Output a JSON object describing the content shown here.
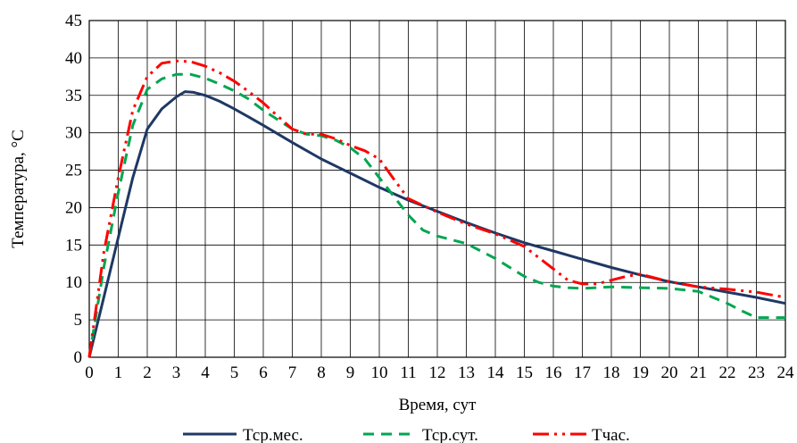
{
  "chart_data": {
    "type": "line",
    "xlabel": "Время, сут",
    "ylabel": "Температура, °С",
    "xlim": [
      0,
      24
    ],
    "ylim": [
      0,
      45
    ],
    "x_ticks": [
      0,
      1,
      2,
      3,
      4,
      5,
      6,
      7,
      8,
      9,
      10,
      11,
      12,
      13,
      14,
      15,
      16,
      17,
      18,
      19,
      20,
      21,
      22,
      23,
      24
    ],
    "y_ticks": [
      0,
      5,
      10,
      15,
      20,
      25,
      30,
      35,
      40,
      45
    ],
    "grid": true,
    "legend_position": "bottom",
    "series": [
      {
        "name": "Тср.мес.",
        "color": "#1f3864",
        "style": "solid",
        "x": [
          0,
          0.5,
          1,
          1.5,
          2,
          2.5,
          3,
          3.3,
          3.6,
          4,
          4.5,
          5,
          5.5,
          6,
          7,
          8,
          9,
          10,
          11,
          12,
          13,
          14,
          15,
          16,
          17,
          18,
          19,
          20,
          21,
          22,
          23,
          24
        ],
        "y": [
          0,
          8,
          16,
          24,
          30.5,
          33.2,
          34.8,
          35.5,
          35.4,
          35,
          34.2,
          33.2,
          32.1,
          31,
          28.7,
          26.5,
          24.6,
          22.7,
          21,
          19.5,
          18,
          16.6,
          15.3,
          14.2,
          13.1,
          12,
          11,
          10.1,
          9.4,
          8.7,
          8,
          7.2
        ]
      },
      {
        "name": "Тср.сут.",
        "color": "#00a651",
        "style": "dashed",
        "x": [
          0,
          0.5,
          1,
          1.5,
          2,
          2.5,
          3,
          3.5,
          4,
          4.5,
          5,
          5.5,
          6,
          7,
          7.5,
          8,
          8.5,
          9,
          9.5,
          10,
          10.5,
          11,
          11.5,
          12,
          13,
          14,
          15,
          15.5,
          16,
          16.5,
          17,
          18,
          19,
          20,
          21,
          22,
          22.5,
          23,
          24
        ],
        "y": [
          0,
          12,
          22,
          31,
          35.8,
          37.2,
          37.8,
          37.8,
          37.3,
          36.5,
          35.6,
          34.5,
          33,
          30.5,
          29.8,
          29.6,
          29,
          28,
          26.5,
          24,
          21.5,
          19,
          17,
          16.2,
          15.2,
          13.2,
          10.8,
          10,
          9.5,
          9.3,
          9.2,
          9.4,
          9.3,
          9.2,
          8.8,
          7.2,
          6.2,
          5.3,
          5.3
        ]
      },
      {
        "name": "Тчас.",
        "color": "#ff0000",
        "style": "dashdot",
        "x": [
          0,
          0.5,
          1,
          1.5,
          2,
          2.5,
          3,
          3.5,
          4,
          4.5,
          5,
          5.5,
          6,
          6.5,
          7,
          7.5,
          8,
          8.5,
          9,
          9.5,
          10,
          10.5,
          11,
          12,
          13,
          14,
          15,
          16,
          16.5,
          17,
          17.5,
          18,
          18.5,
          19,
          20,
          21,
          22,
          23,
          24
        ],
        "y": [
          0,
          14,
          24,
          33,
          37.5,
          39.3,
          39.6,
          39.5,
          38.9,
          38,
          36.9,
          35.5,
          34,
          32.2,
          30.5,
          29.8,
          29.8,
          29.2,
          28.3,
          27.6,
          26.5,
          23.8,
          21.2,
          19.4,
          17.8,
          16.5,
          14.8,
          11.8,
          10.3,
          9.8,
          9.8,
          10.3,
          10.8,
          11.1,
          10.1,
          9.4,
          9.1,
          8.7,
          8
        ]
      }
    ]
  }
}
